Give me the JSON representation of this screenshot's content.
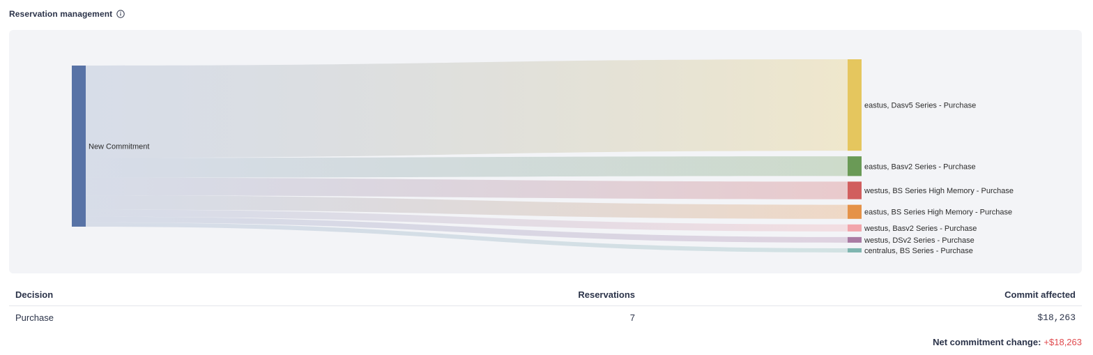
{
  "header": {
    "title": "Reservation management"
  },
  "chart_data": {
    "type": "sankey",
    "source": {
      "label": "New Commitment",
      "color": "#5873a6"
    },
    "targets": [
      {
        "label": "eastus, Dasv5 Series - Purchase",
        "value": 130,
        "color": "#e5c65e"
      },
      {
        "label": "eastus, Basv2 Series - Purchase",
        "value": 28,
        "color": "#6a9a56"
      },
      {
        "label": "westus, BS Series High Memory - Purchase",
        "value": 25,
        "color": "#d15e5e"
      },
      {
        "label": "eastus, BS Series High Memory - Purchase",
        "value": 20,
        "color": "#e59248"
      },
      {
        "label": "westus, Basv2 Series - Purchase",
        "value": 10,
        "color": "#f2a5ab"
      },
      {
        "label": "westus, DSv2 Series - Purchase",
        "value": 8,
        "color": "#a97ba3"
      },
      {
        "label": "centralus, BS Series - Purchase",
        "value": 6,
        "color": "#7fb5b0"
      }
    ]
  },
  "table": {
    "columns": {
      "decision": "Decision",
      "reservations": "Reservations",
      "commit": "Commit affected"
    },
    "rows": [
      {
        "decision": "Purchase",
        "reservations": "7",
        "commit": "$18,263"
      }
    ]
  },
  "summary": {
    "label": "Net commitment change:",
    "value": "+$18,263"
  }
}
